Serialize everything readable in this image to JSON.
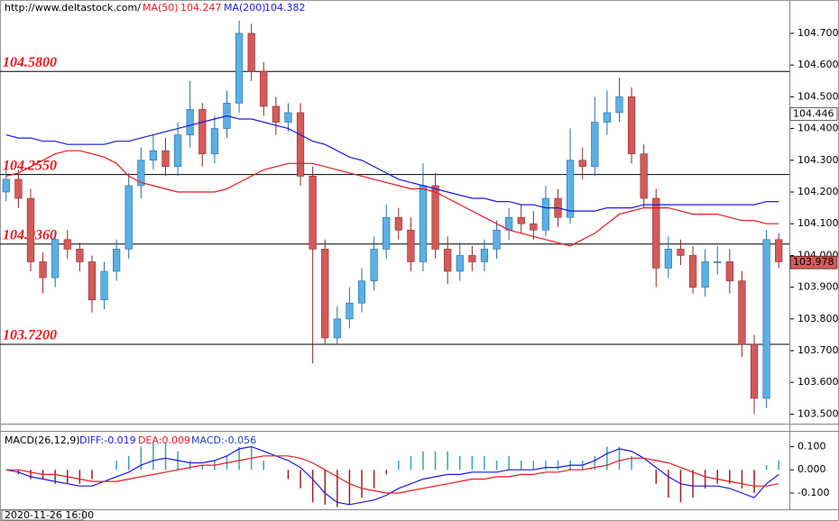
{
  "chart_data": [
    {
      "type": "candlestick",
      "source": "http://www.deltastock.com/",
      "open": [
        104.2,
        104.24,
        104.18,
        103.98,
        103.93,
        104.05,
        104.02,
        103.98,
        103.86,
        103.95,
        104.02,
        104.22,
        104.3,
        104.33,
        104.28,
        104.38,
        104.46,
        104.32,
        104.4,
        104.48,
        104.7,
        104.58,
        104.47,
        104.42,
        104.45,
        104.25,
        104.02,
        103.74,
        103.8,
        103.85,
        103.92,
        104.02,
        104.12,
        104.08,
        103.98,
        104.22,
        104.02,
        103.95,
        104.0,
        103.98,
        104.02,
        104.08,
        104.12,
        104.1,
        104.08,
        104.18,
        104.12,
        104.3,
        104.28,
        104.42,
        104.45,
        104.5,
        104.32,
        104.18,
        103.96,
        104.02,
        104.0,
        103.9,
        103.98,
        103.98,
        103.92,
        103.72,
        103.55,
        104.05
      ],
      "high": [
        104.27,
        104.27,
        104.21,
        104.01,
        104.08,
        104.08,
        104.04,
        104.0,
        103.98,
        104.05,
        104.26,
        104.34,
        104.38,
        104.37,
        104.42,
        104.55,
        104.48,
        104.44,
        104.52,
        104.74,
        104.73,
        104.61,
        104.5,
        104.48,
        104.48,
        104.28,
        104.05,
        103.84,
        103.9,
        103.96,
        104.06,
        104.16,
        104.15,
        104.12,
        104.29,
        104.26,
        104.06,
        104.04,
        104.03,
        104.05,
        104.11,
        104.15,
        104.16,
        104.14,
        104.22,
        104.21,
        104.4,
        104.34,
        104.5,
        104.52,
        104.56,
        104.53,
        104.35,
        104.21,
        104.06,
        104.05,
        104.03,
        104.02,
        104.03,
        104.02,
        103.95,
        103.75,
        104.08,
        104.07
      ],
      "low": [
        104.17,
        104.15,
        103.95,
        103.88,
        103.9,
        103.99,
        103.95,
        103.82,
        103.83,
        103.92,
        103.99,
        104.18,
        104.27,
        104.25,
        104.25,
        104.34,
        104.28,
        104.29,
        104.37,
        104.45,
        104.55,
        104.44,
        104.38,
        104.39,
        104.22,
        103.66,
        103.72,
        103.72,
        103.77,
        103.82,
        103.89,
        103.99,
        104.05,
        103.95,
        103.95,
        103.99,
        103.91,
        103.92,
        103.95,
        103.95,
        103.99,
        104.05,
        104.07,
        104.05,
        104.06,
        104.09,
        104.1,
        104.24,
        104.25,
        104.38,
        104.42,
        104.29,
        104.15,
        103.9,
        103.93,
        103.97,
        103.88,
        103.87,
        103.94,
        103.88,
        103.68,
        103.5,
        103.52,
        103.96
      ],
      "close": [
        104.24,
        104.18,
        103.98,
        103.93,
        104.05,
        104.02,
        103.98,
        103.86,
        103.95,
        104.02,
        104.22,
        104.3,
        104.33,
        104.28,
        104.38,
        104.46,
        104.32,
        104.4,
        104.48,
        104.7,
        104.58,
        104.47,
        104.42,
        104.45,
        104.25,
        104.02,
        103.74,
        103.8,
        103.85,
        103.92,
        104.02,
        104.12,
        104.08,
        103.98,
        104.22,
        104.02,
        103.95,
        104.0,
        103.98,
        104.02,
        104.08,
        104.12,
        104.1,
        104.08,
        104.18,
        104.12,
        104.3,
        104.28,
        104.42,
        104.45,
        104.5,
        104.32,
        104.18,
        103.96,
        104.02,
        104.0,
        103.9,
        103.98,
        103.98,
        103.92,
        103.72,
        103.55,
        104.05,
        103.98
      ],
      "up_color": "#5ab0e6",
      "down_color": "#d45a5a",
      "series": [
        {
          "name": "MA(50)",
          "label": "104.247",
          "color": "#e8191e",
          "values": [
            104.25,
            104.26,
            104.28,
            104.3,
            104.32,
            104.33,
            104.33,
            104.32,
            104.31,
            104.29,
            104.25,
            104.23,
            104.22,
            104.21,
            104.2,
            104.2,
            104.2,
            104.2,
            104.21,
            104.23,
            104.25,
            104.27,
            104.28,
            104.29,
            104.29,
            104.29,
            104.28,
            104.27,
            104.26,
            104.25,
            104.24,
            104.23,
            104.22,
            104.21,
            104.21,
            104.2,
            104.18,
            104.16,
            104.14,
            104.12,
            104.1,
            104.08,
            104.07,
            104.06,
            104.05,
            104.04,
            104.03,
            104.05,
            104.07,
            104.1,
            104.13,
            104.14,
            104.15,
            104.15,
            104.15,
            104.14,
            104.13,
            104.13,
            104.13,
            104.12,
            104.11,
            104.11,
            104.1,
            104.1
          ]
        },
        {
          "name": "MA(200)",
          "label": "104.382",
          "color": "#1a1ae6",
          "values": [
            104.38,
            104.37,
            104.37,
            104.36,
            104.36,
            104.35,
            104.35,
            104.35,
            104.35,
            104.36,
            104.36,
            104.37,
            104.38,
            104.39,
            104.4,
            104.41,
            104.42,
            104.43,
            104.44,
            104.43,
            104.43,
            104.42,
            104.41,
            104.4,
            104.38,
            104.36,
            104.35,
            104.33,
            104.31,
            104.3,
            104.28,
            104.26,
            104.24,
            104.23,
            104.22,
            104.21,
            104.2,
            104.19,
            104.18,
            104.18,
            104.17,
            104.17,
            104.16,
            104.16,
            104.15,
            104.15,
            104.14,
            104.14,
            104.14,
            104.15,
            104.15,
            104.15,
            104.16,
            104.16,
            104.16,
            104.16,
            104.16,
            104.16,
            104.16,
            104.16,
            104.16,
            104.16,
            104.17,
            104.17
          ]
        }
      ],
      "levels": [
        {
          "value": 104.58,
          "label": "104.5800"
        },
        {
          "value": 104.255,
          "label": "104.2550"
        },
        {
          "value": 104.036,
          "label": "104.0360"
        },
        {
          "value": 103.72,
          "label": "103.7200"
        }
      ],
      "price_tags": [
        {
          "value": 104.446,
          "label": "104.446",
          "color": "#ffffff"
        },
        {
          "value": 103.978,
          "label": "103.978",
          "color": "#d45a5a"
        }
      ],
      "ylim": [
        103.47,
        104.805
      ],
      "yticks": [
        {
          "value": 103.5,
          "label": "103.500"
        },
        {
          "value": 103.6,
          "label": "103.600"
        },
        {
          "value": 103.7,
          "label": "103.700"
        },
        {
          "value": 103.8,
          "label": "103.800"
        },
        {
          "value": 103.9,
          "label": "103.900"
        },
        {
          "value": 104.0,
          "label": "104.000"
        },
        {
          "value": 104.1,
          "label": "104.100"
        },
        {
          "value": 104.2,
          "label": "104.200"
        },
        {
          "value": 104.3,
          "label": "104.300"
        },
        {
          "value": 104.4,
          "label": "104.400"
        },
        {
          "value": 104.5,
          "label": "104.500"
        },
        {
          "value": 104.6,
          "label": "104.600"
        },
        {
          "value": 104.7,
          "label": "104.700"
        }
      ],
      "x_label": "2020-11-26 16:00"
    },
    {
      "type": "macd",
      "title": "MACD(26,12,9)",
      "series": [
        {
          "name": "DIFF:-0.019",
          "color": "#1a1ae6",
          "values": [
            0.0,
            -0.01,
            -0.03,
            -0.04,
            -0.05,
            -0.06,
            -0.07,
            -0.07,
            -0.05,
            -0.03,
            -0.01,
            0.02,
            0.04,
            0.05,
            0.04,
            0.03,
            0.03,
            0.04,
            0.06,
            0.09,
            0.1,
            0.08,
            0.06,
            0.04,
            0.01,
            -0.04,
            -0.1,
            -0.14,
            -0.15,
            -0.14,
            -0.13,
            -0.11,
            -0.08,
            -0.06,
            -0.04,
            -0.03,
            -0.02,
            -0.02,
            -0.01,
            -0.01,
            -0.01,
            0.0,
            0.0,
            0.0,
            0.01,
            0.01,
            0.02,
            0.02,
            0.04,
            0.07,
            0.09,
            0.08,
            0.05,
            0.01,
            -0.03,
            -0.06,
            -0.07,
            -0.07,
            -0.07,
            -0.08,
            -0.1,
            -0.12,
            -0.06,
            -0.02
          ]
        },
        {
          "name": "DEA:0.009",
          "color": "#e8191e",
          "values": [
            0.0,
            0.0,
            -0.01,
            -0.02,
            -0.02,
            -0.03,
            -0.04,
            -0.05,
            -0.05,
            -0.05,
            -0.04,
            -0.03,
            -0.02,
            -0.01,
            0.0,
            0.01,
            0.02,
            0.02,
            0.03,
            0.04,
            0.05,
            0.06,
            0.06,
            0.06,
            0.05,
            0.03,
            0.0,
            -0.03,
            -0.06,
            -0.08,
            -0.09,
            -0.1,
            -0.1,
            -0.09,
            -0.08,
            -0.07,
            -0.06,
            -0.05,
            -0.04,
            -0.04,
            -0.03,
            -0.03,
            -0.02,
            -0.02,
            -0.01,
            -0.01,
            0.0,
            0.0,
            0.01,
            0.02,
            0.04,
            0.05,
            0.05,
            0.04,
            0.03,
            0.01,
            -0.01,
            -0.03,
            -0.04,
            -0.05,
            -0.06,
            -0.07,
            -0.07,
            -0.06
          ]
        }
      ],
      "histogram": {
        "name": "MACD:-0.056",
        "color": "#2040c0",
        "up_color": "#3aa0b8",
        "down_color": "#a02020",
        "values": [
          0.0,
          -0.02,
          -0.04,
          -0.04,
          -0.06,
          -0.06,
          -0.06,
          -0.04,
          0.0,
          0.04,
          0.06,
          0.1,
          0.12,
          0.12,
          0.08,
          0.04,
          0.02,
          0.04,
          0.06,
          0.1,
          0.1,
          0.04,
          0.0,
          -0.04,
          -0.08,
          -0.14,
          -0.15,
          -0.16,
          -0.15,
          -0.12,
          -0.08,
          -0.02,
          0.04,
          0.06,
          0.08,
          0.08,
          0.08,
          0.06,
          0.06,
          0.06,
          0.04,
          0.06,
          0.04,
          0.04,
          0.04,
          0.04,
          0.04,
          0.04,
          0.06,
          0.1,
          0.1,
          0.06,
          0.0,
          -0.06,
          -0.12,
          -0.14,
          -0.12,
          -0.08,
          -0.06,
          -0.06,
          -0.08,
          -0.1,
          0.02,
          0.04
        ]
      },
      "ylim": [
        -0.17,
        0.16
      ],
      "yticks": [
        {
          "value": 0.1,
          "label": "0.100"
        },
        {
          "value": 0,
          "label": "0.000"
        },
        {
          "value": -0.1,
          "label": "-0.100"
        }
      ]
    }
  ]
}
